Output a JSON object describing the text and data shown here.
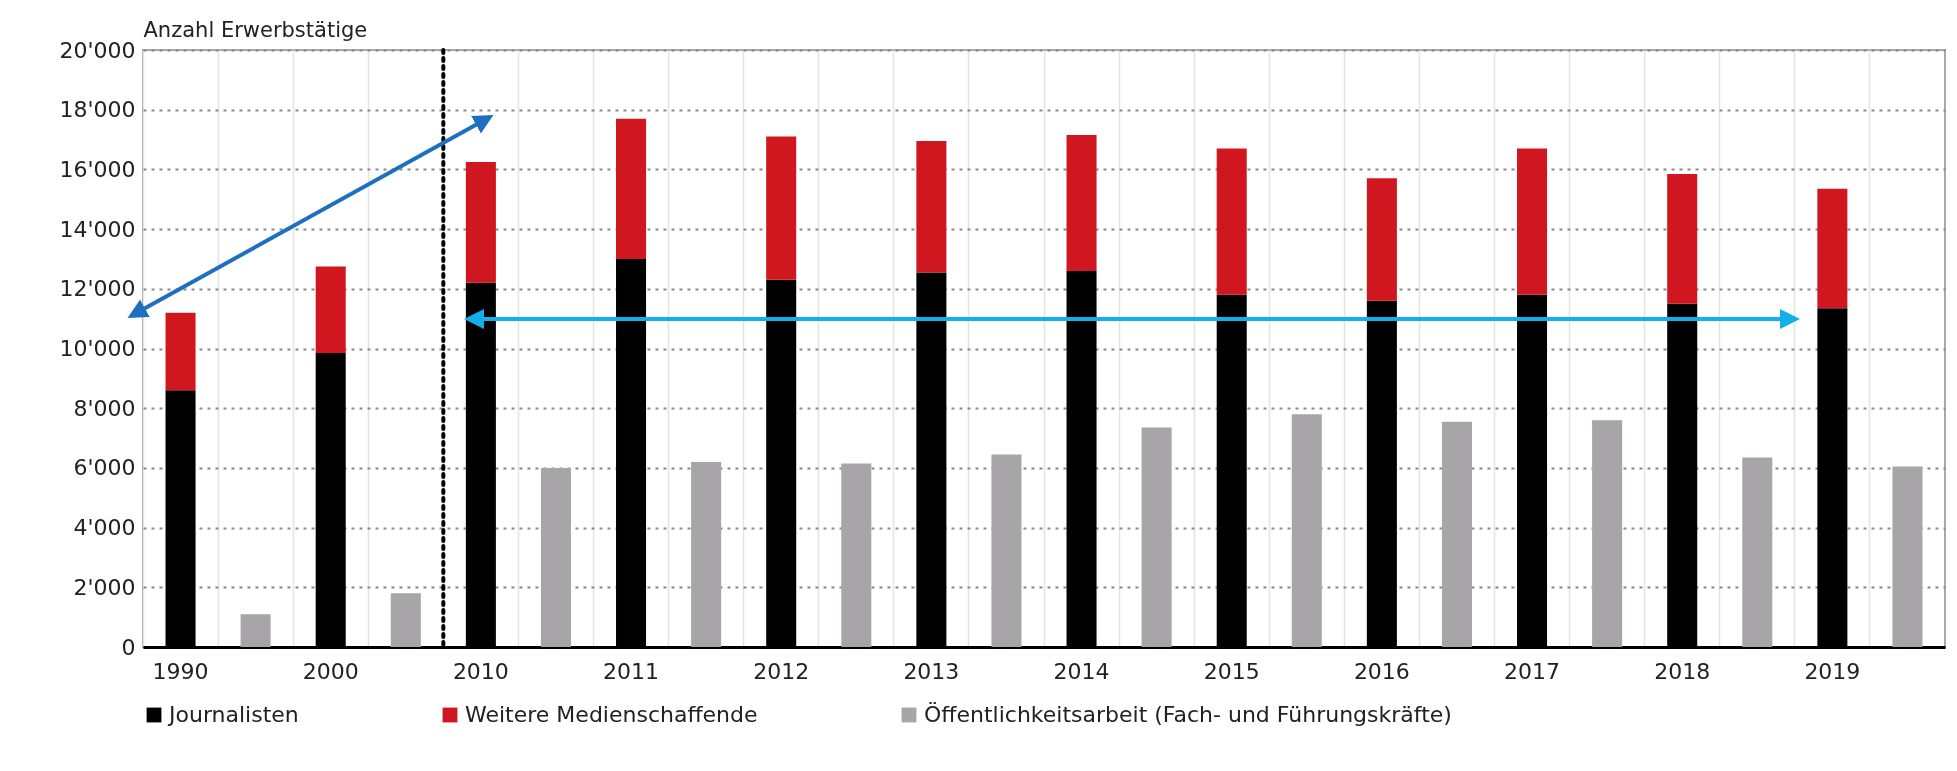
{
  "chart_data": {
    "type": "bar",
    "ylabel": "Anzahl Erwerbstätige",
    "categories": [
      "1990",
      null,
      "2000",
      null,
      "2010",
      null,
      "2011",
      null,
      "2012",
      null,
      "2013",
      null,
      "2014",
      null,
      "2015",
      null,
      "2016",
      null,
      "2017",
      null,
      "2018",
      null,
      "2019",
      null
    ],
    "stacked": true,
    "series": [
      {
        "name": "Journalisten",
        "color": "#000000",
        "values": [
          8600,
          null,
          9850,
          null,
          12200,
          null,
          13000,
          null,
          12300,
          null,
          12550,
          null,
          12600,
          null,
          11800,
          null,
          11600,
          null,
          11800,
          null,
          11500,
          null,
          11350,
          null
        ]
      },
      {
        "name": "Weitere Medienschaffende",
        "color": "#d0161e",
        "values": [
          2600,
          null,
          2900,
          null,
          4050,
          null,
          4700,
          null,
          4800,
          null,
          4400,
          null,
          4550,
          null,
          4900,
          null,
          4100,
          null,
          4900,
          null,
          4350,
          null,
          4000,
          null
        ]
      },
      {
        "name": "Öffentlichkeitsarbeit (Fach- und Führungskräfte)",
        "color": "#a7a5a8",
        "values": [
          null,
          1100,
          null,
          1800,
          null,
          6000,
          null,
          6200,
          null,
          6150,
          null,
          6450,
          null,
          7350,
          null,
          7800,
          null,
          7550,
          null,
          7600,
          null,
          6350,
          null,
          6050
        ]
      }
    ],
    "ylim": [
      0,
      20000
    ],
    "yticks": [
      0,
      {
        "value": 2000,
        "label": "2'000"
      },
      {
        "value": 4000,
        "label": "4'000"
      },
      {
        "value": 6000,
        "label": "6'000"
      },
      {
        "value": 8000,
        "label": "8'000"
      },
      {
        "value": 10000,
        "label": "10'000"
      },
      {
        "value": 12000,
        "label": "12'000"
      },
      {
        "value": 14000,
        "label": "14'000"
      },
      {
        "value": 16000,
        "label": "16'000"
      },
      {
        "value": 18000,
        "label": "18'000"
      },
      {
        "value": 20000,
        "label": "20'000"
      }
    ],
    "ref_lines": [
      {
        "axis": "x",
        "value": "2010",
        "line_style": "dotted",
        "color": "#000000"
      }
    ],
    "grid": true,
    "legend": "bottom"
  }
}
